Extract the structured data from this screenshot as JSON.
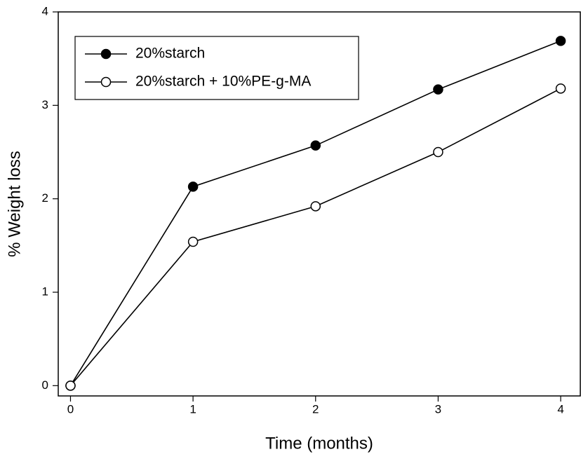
{
  "chart_data": {
    "type": "line",
    "x_label": "Time (months)",
    "y_label": "% Weight loss",
    "x": [
      0,
      1,
      2,
      3,
      4
    ],
    "series": [
      {
        "name": "20%starch",
        "color": "#000000",
        "marker": "filled-circle",
        "values": [
          0,
          2.13,
          2.57,
          3.17,
          3.69
        ]
      },
      {
        "name": "20%starch + 10%PE-g-MA",
        "color": "#000000",
        "marker": "open-circle",
        "values": [
          0,
          1.54,
          1.92,
          2.5,
          3.18
        ]
      }
    ],
    "xlim": [
      -0.1,
      4.16
    ],
    "xticks": [
      0,
      1,
      2,
      3,
      4
    ],
    "ylim": [
      -0.11,
      4
    ],
    "yticks": [
      0,
      1,
      2,
      3,
      4
    ],
    "grid": false,
    "legend_position": "upper-left"
  }
}
